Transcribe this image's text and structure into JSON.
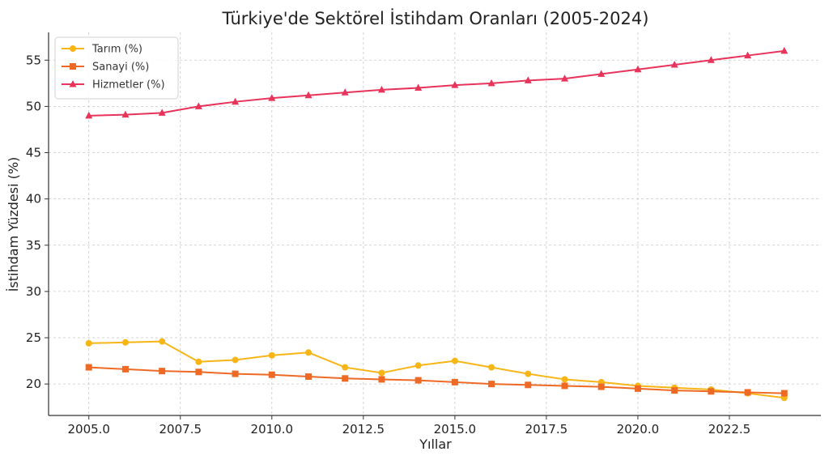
{
  "chart_data": {
    "type": "line",
    "title": "Türkiye'de Sektörel İstihdam Oranları (2005-2024)",
    "xlabel": "Yıllar",
    "ylabel": "İstihdam Yüzdesi (%)",
    "xlim": [
      2003.9,
      2025.0
    ],
    "ylim": [
      16.6,
      58.0
    ],
    "xticks": [
      2005.0,
      2007.5,
      2010.0,
      2012.5,
      2015.0,
      2017.5,
      2020.0,
      2022.5
    ],
    "xtick_labels": [
      "2005.0",
      "2007.5",
      "2010.0",
      "2012.5",
      "2015.0",
      "2017.5",
      "2020.0",
      "2022.5"
    ],
    "yticks": [
      20,
      25,
      30,
      35,
      40,
      45,
      50,
      55
    ],
    "ytick_labels": [
      "20",
      "25",
      "30",
      "35",
      "40",
      "45",
      "50",
      "55"
    ],
    "grid": true,
    "legend_position": "top-left",
    "x": [
      2005,
      2006,
      2007,
      2008,
      2009,
      2010,
      2011,
      2012,
      2013,
      2014,
      2015,
      2016,
      2017,
      2018,
      2019,
      2020,
      2021,
      2022,
      2023,
      2024
    ],
    "series": [
      {
        "name": "Tarım (%)",
        "color": "#f7b516",
        "marker": "circle",
        "values": [
          24.4,
          24.5,
          24.6,
          22.4,
          22.6,
          23.1,
          23.4,
          21.8,
          21.2,
          22.0,
          22.5,
          21.8,
          21.1,
          20.5,
          20.2,
          19.8,
          19.6,
          19.4,
          19.0,
          18.5
        ]
      },
      {
        "name": "Sanayi (%)",
        "color": "#ee6a24",
        "marker": "square",
        "values": [
          21.8,
          21.6,
          21.4,
          21.3,
          21.1,
          21.0,
          20.8,
          20.6,
          20.5,
          20.4,
          20.2,
          20.0,
          19.9,
          19.8,
          19.7,
          19.5,
          19.3,
          19.2,
          19.1,
          19.0
        ]
      },
      {
        "name": "Hizmetler (%)",
        "color": "#e8335a",
        "marker": "triangle",
        "values": [
          49.0,
          49.1,
          49.3,
          50.0,
          50.5,
          50.9,
          51.2,
          51.5,
          51.8,
          52.0,
          52.3,
          52.5,
          52.8,
          53.0,
          53.5,
          54.0,
          54.5,
          55.0,
          55.5,
          56.0
        ]
      }
    ]
  }
}
